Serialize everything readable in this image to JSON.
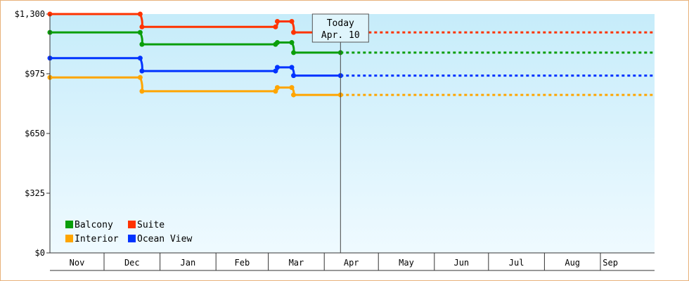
{
  "chart_data": {
    "type": "line",
    "title": "",
    "xlabel": "",
    "ylabel": "",
    "ylim": [
      0,
      1300
    ],
    "y_ticks": [
      {
        "value": 0,
        "label": "$0"
      },
      {
        "value": 325,
        "label": "$325"
      },
      {
        "value": 650,
        "label": "$650"
      },
      {
        "value": 975,
        "label": "$975"
      },
      {
        "value": 1300,
        "label": "$1,300"
      }
    ],
    "x_axis": "months",
    "x_range": [
      "2023-11-01",
      "2024-09-30"
    ],
    "months": [
      {
        "label": "Nov",
        "start": "2023-11-01",
        "end": "2023-12-01"
      },
      {
        "label": "Dec",
        "start": "2023-12-01",
        "end": "2024-01-01"
      },
      {
        "label": "Jan",
        "start": "2024-01-01",
        "end": "2024-02-01"
      },
      {
        "label": "Feb",
        "start": "2024-02-01",
        "end": "2024-03-01"
      },
      {
        "label": "Mar",
        "start": "2024-03-01",
        "end": "2024-04-01"
      },
      {
        "label": "Apr",
        "start": "2024-04-01",
        "end": "2024-05-01"
      },
      {
        "label": "May",
        "start": "2024-05-01",
        "end": "2024-06-01"
      },
      {
        "label": "Jun",
        "start": "2024-06-01",
        "end": "2024-07-01"
      },
      {
        "label": "Jul",
        "start": "2024-07-01",
        "end": "2024-08-01"
      },
      {
        "label": "Aug",
        "start": "2024-08-01",
        "end": "2024-09-01"
      },
      {
        "label": "Sep",
        "start": "2024-09-01",
        "end": "2024-09-12"
      }
    ],
    "today": {
      "label": "Today",
      "date_label": "Apr. 10",
      "date": "2024-04-10"
    },
    "grid": false,
    "legend_position": "bottom-left",
    "series": [
      {
        "name": "Balcony",
        "color": "#0a9e0a",
        "points": [
          [
            "2023-11-01",
            1200
          ],
          [
            "2023-12-21",
            1200
          ],
          [
            "2023-12-22",
            1135
          ],
          [
            "2024-03-05",
            1135
          ],
          [
            "2024-03-06",
            1145
          ],
          [
            "2024-03-14",
            1145
          ],
          [
            "2024-03-15",
            1090
          ],
          [
            "2024-04-10",
            1090
          ]
        ],
        "projected_to": "2024-09-30"
      },
      {
        "name": "Suite",
        "color": "#ff3300",
        "points": [
          [
            "2023-11-01",
            1300
          ],
          [
            "2023-12-21",
            1300
          ],
          [
            "2023-12-22",
            1230
          ],
          [
            "2024-03-05",
            1230
          ],
          [
            "2024-03-06",
            1260
          ],
          [
            "2024-03-14",
            1260
          ],
          [
            "2024-03-15",
            1200
          ],
          [
            "2024-04-10",
            1200
          ]
        ],
        "projected_to": "2024-09-30"
      },
      {
        "name": "Interior",
        "color": "#ffa500",
        "points": [
          [
            "2023-11-01",
            955
          ],
          [
            "2023-12-21",
            955
          ],
          [
            "2023-12-22",
            880
          ],
          [
            "2024-03-05",
            880
          ],
          [
            "2024-03-06",
            900
          ],
          [
            "2024-03-14",
            900
          ],
          [
            "2024-03-15",
            860
          ],
          [
            "2024-04-10",
            860
          ]
        ],
        "projected_to": "2024-09-30"
      },
      {
        "name": "Ocean View",
        "color": "#0033ff",
        "points": [
          [
            "2023-11-01",
            1060
          ],
          [
            "2023-12-21",
            1060
          ],
          [
            "2023-12-22",
            990
          ],
          [
            "2024-03-05",
            990
          ],
          [
            "2024-03-06",
            1010
          ],
          [
            "2024-03-14",
            1010
          ],
          [
            "2024-03-15",
            965
          ],
          [
            "2024-04-10",
            965
          ]
        ],
        "projected_to": "2024-09-30"
      }
    ]
  }
}
